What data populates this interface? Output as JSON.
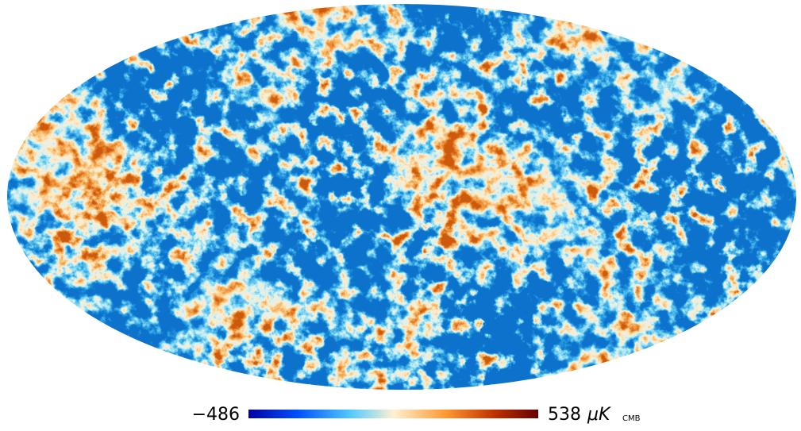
{
  "colorbar": {
    "min": {
      "value": -486,
      "label": "−486"
    },
    "max": 538,
    "unit": "μK",
    "unit_subscript": "CMB"
  }
}
